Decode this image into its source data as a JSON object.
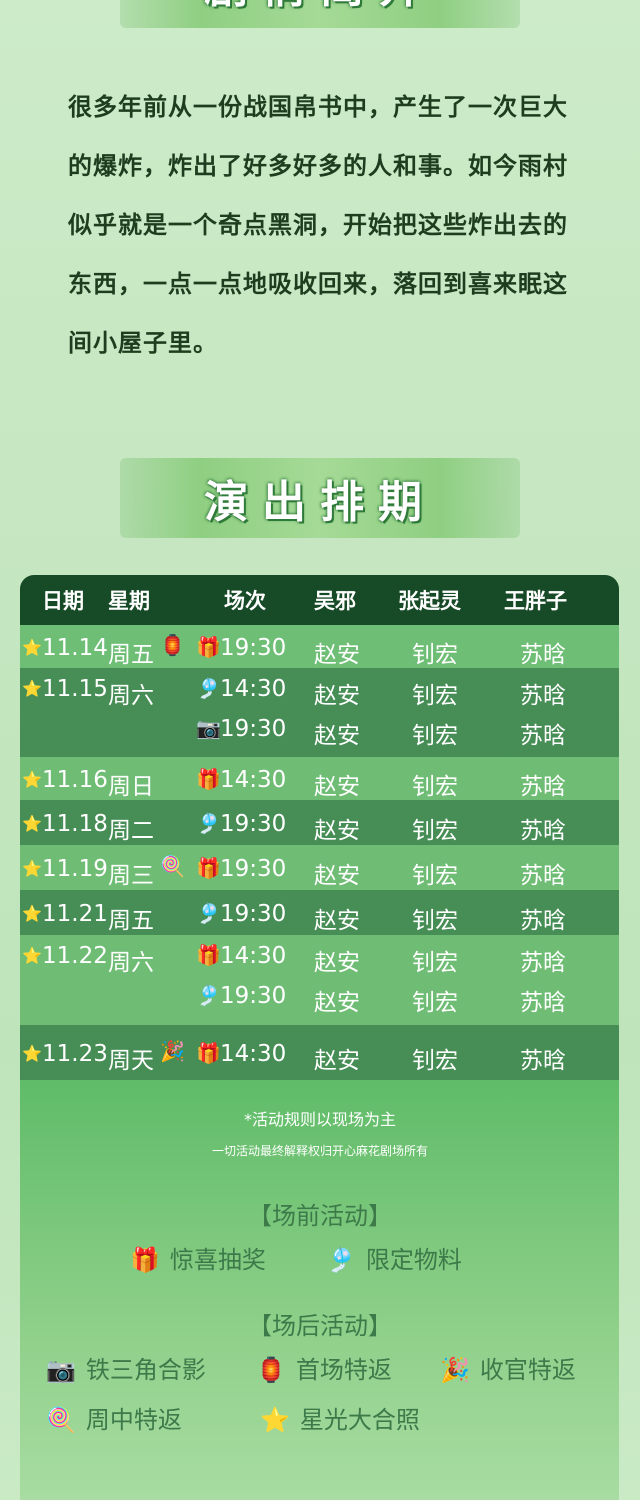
{
  "intro": {
    "title": "剧情简介",
    "text": "很多年前从一份战国帛书中，产生了一次巨大的爆炸，炸出了好多好多的人和事。如今雨村似乎就是一个奇点黑洞，开始把这些炸出去的东西，一点一点地吸收回来，落回到喜来眠这间小屋子里。"
  },
  "schedule": {
    "title": "演出排期",
    "headers": [
      "日期",
      "星期",
      "场次",
      "吴邪",
      "张起灵",
      "王胖子"
    ],
    "rows": [
      {
        "date": "11.14",
        "weekday": "周五",
        "shows": [
          {
            "icon": "gift",
            "time": "19:30"
          }
        ],
        "extra_icon": "sky-lantern",
        "cast": [
          "赵安",
          "钊宏",
          "苏晗"
        ],
        "shade": "light"
      },
      {
        "date": "11.15",
        "weekday": "周六",
        "shows": [
          {
            "icon": "wind-chime",
            "time": "14:30"
          },
          {
            "icon": "camera",
            "time": "19:30"
          }
        ],
        "cast": [
          "赵安",
          "钊宏",
          "苏晗"
        ],
        "shade": "dark"
      },
      {
        "date": "11.16",
        "weekday": "周日",
        "shows": [
          {
            "icon": "gift",
            "time": "14:30"
          }
        ],
        "cast": [
          "赵安",
          "钊宏",
          "苏晗"
        ],
        "shade": "light"
      },
      {
        "date": "11.18",
        "weekday": "周二",
        "shows": [
          {
            "icon": "wind-chime",
            "time": "19:30"
          }
        ],
        "cast": [
          "赵安",
          "钊宏",
          "苏晗"
        ],
        "shade": "dark"
      },
      {
        "date": "11.19",
        "weekday": "周三",
        "shows": [
          {
            "icon": "gift",
            "time": "19:30"
          }
        ],
        "extra_icon": "lollipop",
        "cast": [
          "赵安",
          "钊宏",
          "苏晗"
        ],
        "shade": "light"
      },
      {
        "date": "11.21",
        "weekday": "周五",
        "shows": [
          {
            "icon": "wind-chime",
            "time": "19:30"
          }
        ],
        "cast": [
          "赵安",
          "钊宏",
          "苏晗"
        ],
        "shade": "dark"
      },
      {
        "date": "11.22",
        "weekday": "周六",
        "shows": [
          {
            "icon": "gift",
            "time": "14:30"
          },
          {
            "icon": "wind-chime",
            "time": "19:30"
          }
        ],
        "cast": [
          "赵安",
          "钊宏",
          "苏晗"
        ],
        "shade": "light"
      },
      {
        "date": "11.23",
        "weekday": "周天",
        "shows": [
          {
            "icon": "gift",
            "time": "14:30"
          }
        ],
        "extra_icon": "party-popper",
        "cast": [
          "赵安",
          "钊宏",
          "苏晗"
        ],
        "shade": "dark"
      }
    ]
  },
  "notes": {
    "rule": "*活动规则以现场为主",
    "rights": "一切活动最终解释权归开心麻花剧场所有"
  },
  "pre_activities": {
    "title": "【场前活动】",
    "items": [
      {
        "icon": "gift",
        "label": "惊喜抽奖"
      },
      {
        "icon": "wind-chime",
        "label": "限定物料"
      }
    ]
  },
  "post_activities": {
    "title": "【场后活动】",
    "items": [
      {
        "icon": "camera",
        "label": "铁三角合影"
      },
      {
        "icon": "sky-lantern",
        "label": "首场特返"
      },
      {
        "icon": "party-popper",
        "label": "收官特返"
      },
      {
        "icon": "lollipop",
        "label": "周中特返"
      },
      {
        "icon": "star",
        "label": "星光大合照"
      }
    ]
  },
  "colors": {
    "header": "#174a26",
    "row_light": "#60b668",
    "row_dark": "#38844a",
    "text_dark": "#1e3d1f",
    "activity_text": "#3d7a4a"
  }
}
